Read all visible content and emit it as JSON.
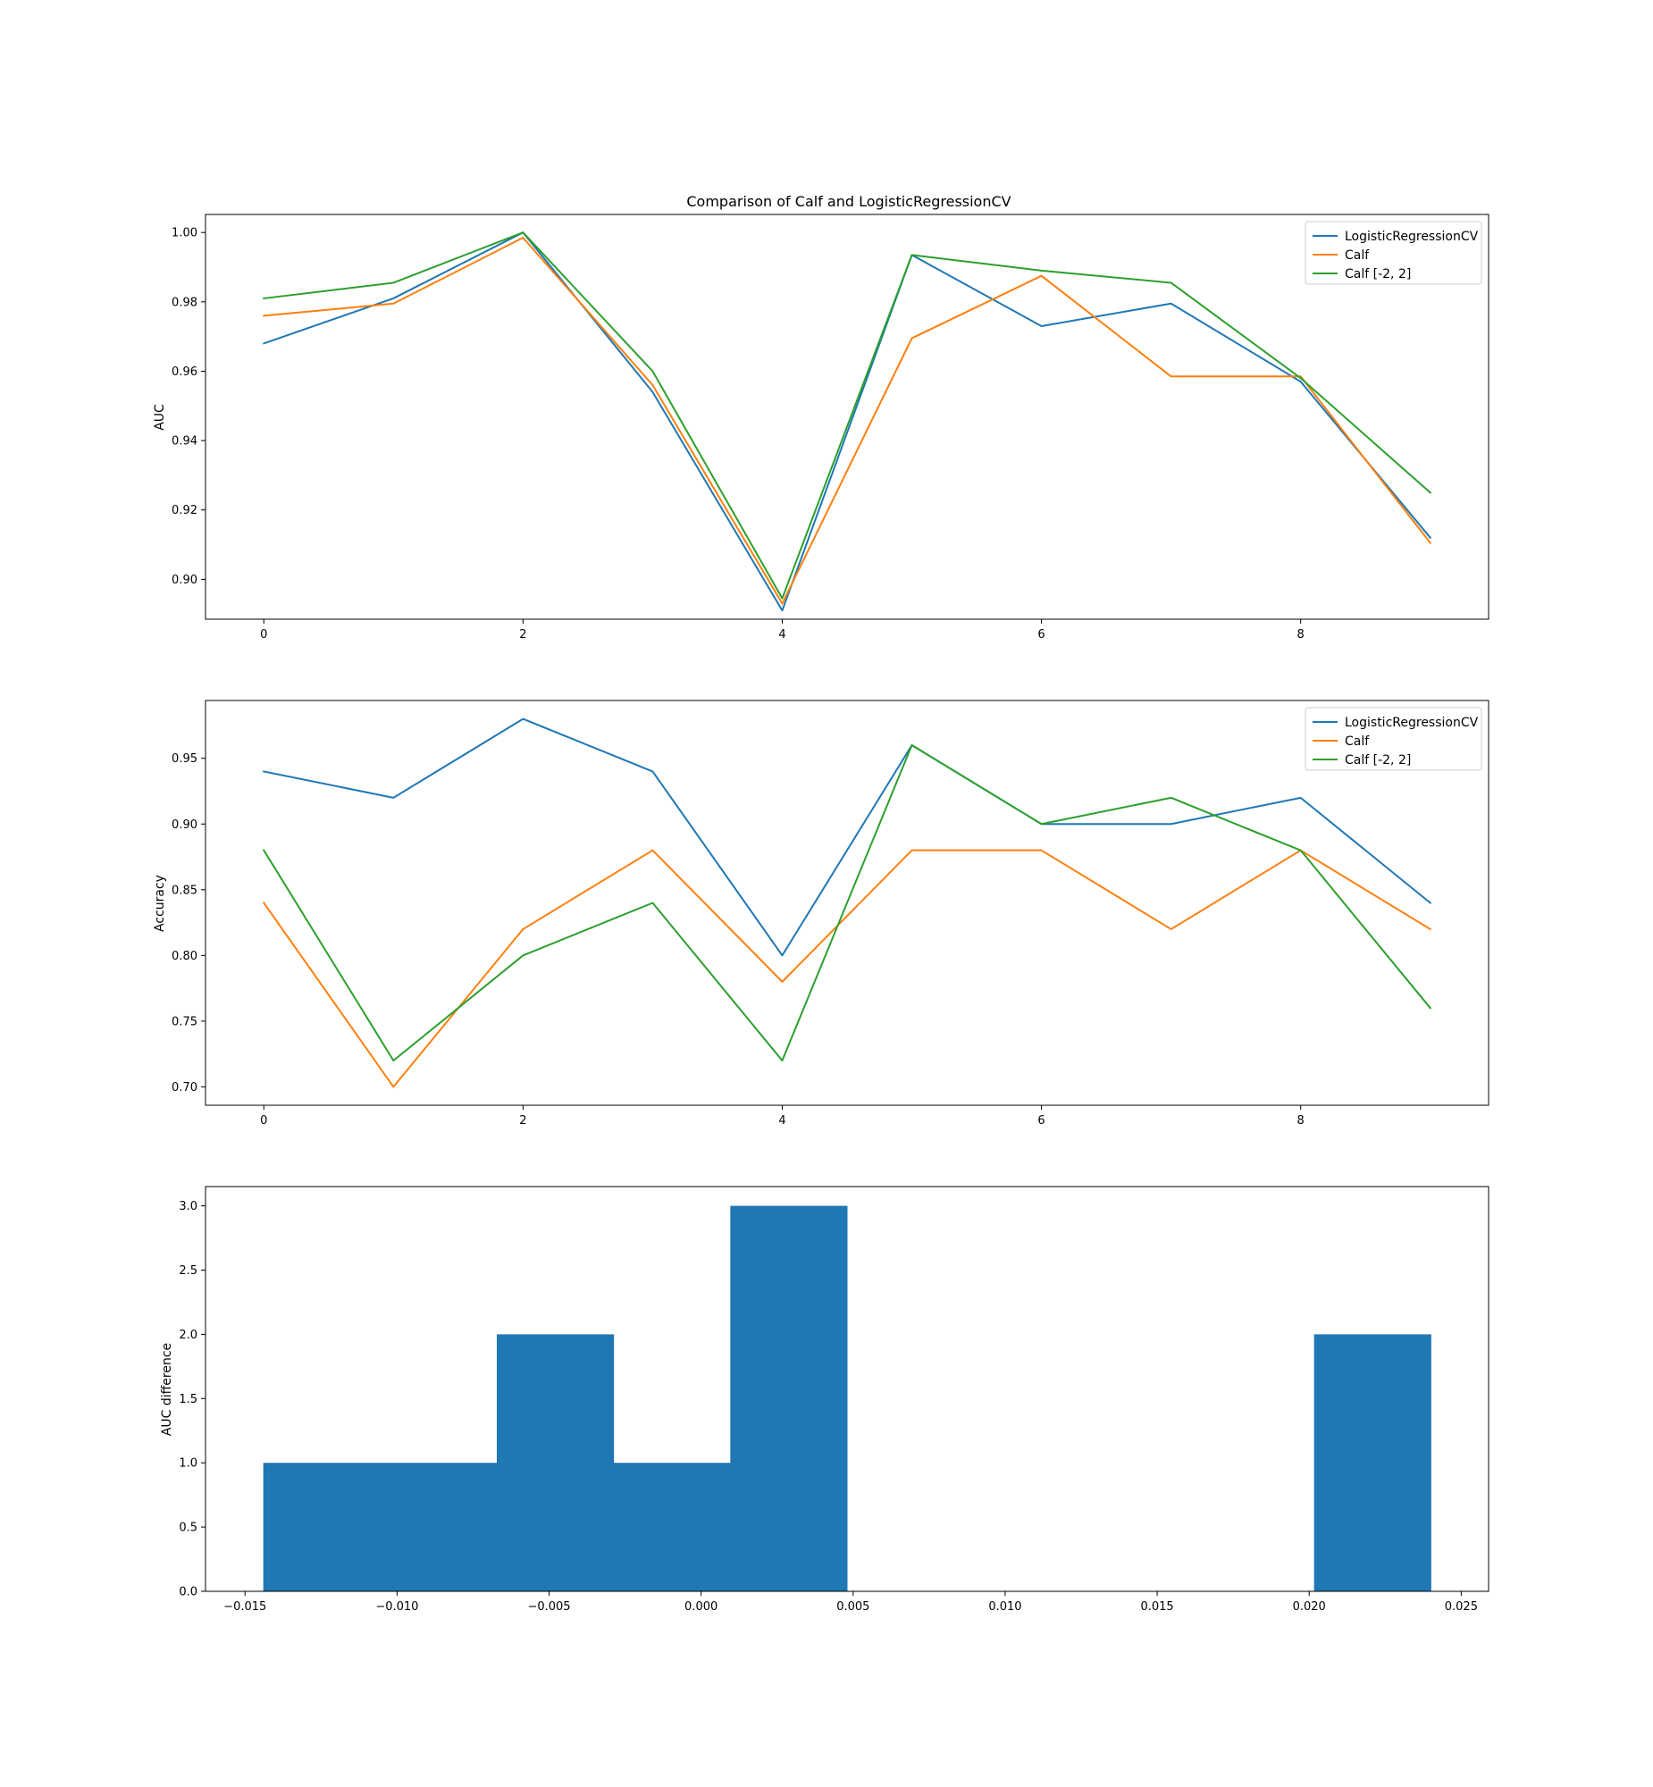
{
  "chart_data": [
    {
      "type": "line",
      "title": "Comparison of Calf and LogisticRegressionCV",
      "xlabel": "",
      "ylabel": "AUC",
      "xlim": [
        -0.45,
        9.45
      ],
      "ylim": [
        0.8885,
        1.0052
      ],
      "xticks": [
        0,
        2,
        4,
        6,
        8
      ],
      "xtick_labels": [
        "0",
        "2",
        "4",
        "6",
        "8"
      ],
      "yticks": [
        0.9,
        0.92,
        0.94,
        0.96,
        0.98,
        1.0
      ],
      "ytick_labels": [
        "0.90",
        "0.92",
        "0.94",
        "0.96",
        "0.98",
        "1.00"
      ],
      "grid": false,
      "legend": "top-right",
      "x": [
        0,
        1,
        2,
        3,
        4,
        5,
        6,
        7,
        8,
        9
      ],
      "series": [
        {
          "name": "LogisticRegressionCV",
          "color": "#1f77b4",
          "values": [
            0.968,
            0.981,
            1.0,
            0.954,
            0.891,
            0.9935,
            0.973,
            0.9795,
            0.957,
            0.912
          ]
        },
        {
          "name": "Calf",
          "color": "#ff7f0e",
          "values": [
            0.976,
            0.9795,
            0.9985,
            0.956,
            0.893,
            0.9695,
            0.9875,
            0.9585,
            0.9585,
            0.9105
          ]
        },
        {
          "name": "Calf [-2, 2]",
          "color": "#2ca02c",
          "values": [
            0.981,
            0.9855,
            1.0,
            0.96,
            0.8945,
            0.9935,
            0.989,
            0.9855,
            0.958,
            0.925
          ]
        }
      ]
    },
    {
      "type": "line",
      "title": "",
      "xlabel": "",
      "ylabel": "Accuracy",
      "xlim": [
        -0.45,
        9.45
      ],
      "ylim": [
        0.686,
        0.994
      ],
      "xticks": [
        0,
        2,
        4,
        6,
        8
      ],
      "xtick_labels": [
        "0",
        "2",
        "4",
        "6",
        "8"
      ],
      "yticks": [
        0.7,
        0.75,
        0.8,
        0.85,
        0.9,
        0.95
      ],
      "ytick_labels": [
        "0.70",
        "0.75",
        "0.80",
        "0.85",
        "0.90",
        "0.95"
      ],
      "grid": false,
      "legend": "top-right",
      "x": [
        0,
        1,
        2,
        3,
        4,
        5,
        6,
        7,
        8,
        9
      ],
      "series": [
        {
          "name": "LogisticRegressionCV",
          "color": "#1f77b4",
          "values": [
            0.94,
            0.92,
            0.98,
            0.94,
            0.8,
            0.96,
            0.9,
            0.9,
            0.92,
            0.84
          ]
        },
        {
          "name": "Calf",
          "color": "#ff7f0e",
          "values": [
            0.84,
            0.7,
            0.82,
            0.88,
            0.78,
            0.88,
            0.88,
            0.82,
            0.88,
            0.82
          ]
        },
        {
          "name": "Calf [-2, 2]",
          "color": "#2ca02c",
          "values": [
            0.88,
            0.72,
            0.8,
            0.84,
            0.72,
            0.96,
            0.9,
            0.92,
            0.88,
            0.76
          ]
        }
      ]
    },
    {
      "type": "bar",
      "title": "",
      "xlabel": "",
      "ylabel": "AUC difference",
      "xlim": [
        -0.0163,
        0.0259
      ],
      "ylim": [
        0,
        3.15
      ],
      "xticks": [
        -0.015,
        -0.01,
        -0.005,
        0.0,
        0.005,
        0.01,
        0.015,
        0.02,
        0.025
      ],
      "xtick_labels": [
        "−0.015",
        "−0.010",
        "−0.005",
        "0.000",
        "0.005",
        "0.010",
        "0.015",
        "0.020",
        "0.025"
      ],
      "yticks": [
        0.0,
        0.5,
        1.0,
        1.5,
        2.0,
        2.5,
        3.0
      ],
      "ytick_labels": [
        "0.0",
        "0.5",
        "1.0",
        "1.5",
        "2.0",
        "2.5",
        "3.0"
      ],
      "grid": false,
      "color": "#1f77b4",
      "bin_edges": [
        -0.0144,
        -0.01056,
        -0.00672,
        -0.00288,
        0.00096,
        0.0048,
        0.00864,
        0.01248,
        0.01632,
        0.02016,
        0.024
      ],
      "counts": [
        1,
        1,
        2,
        1,
        3,
        0,
        0,
        0,
        0,
        2
      ]
    }
  ]
}
